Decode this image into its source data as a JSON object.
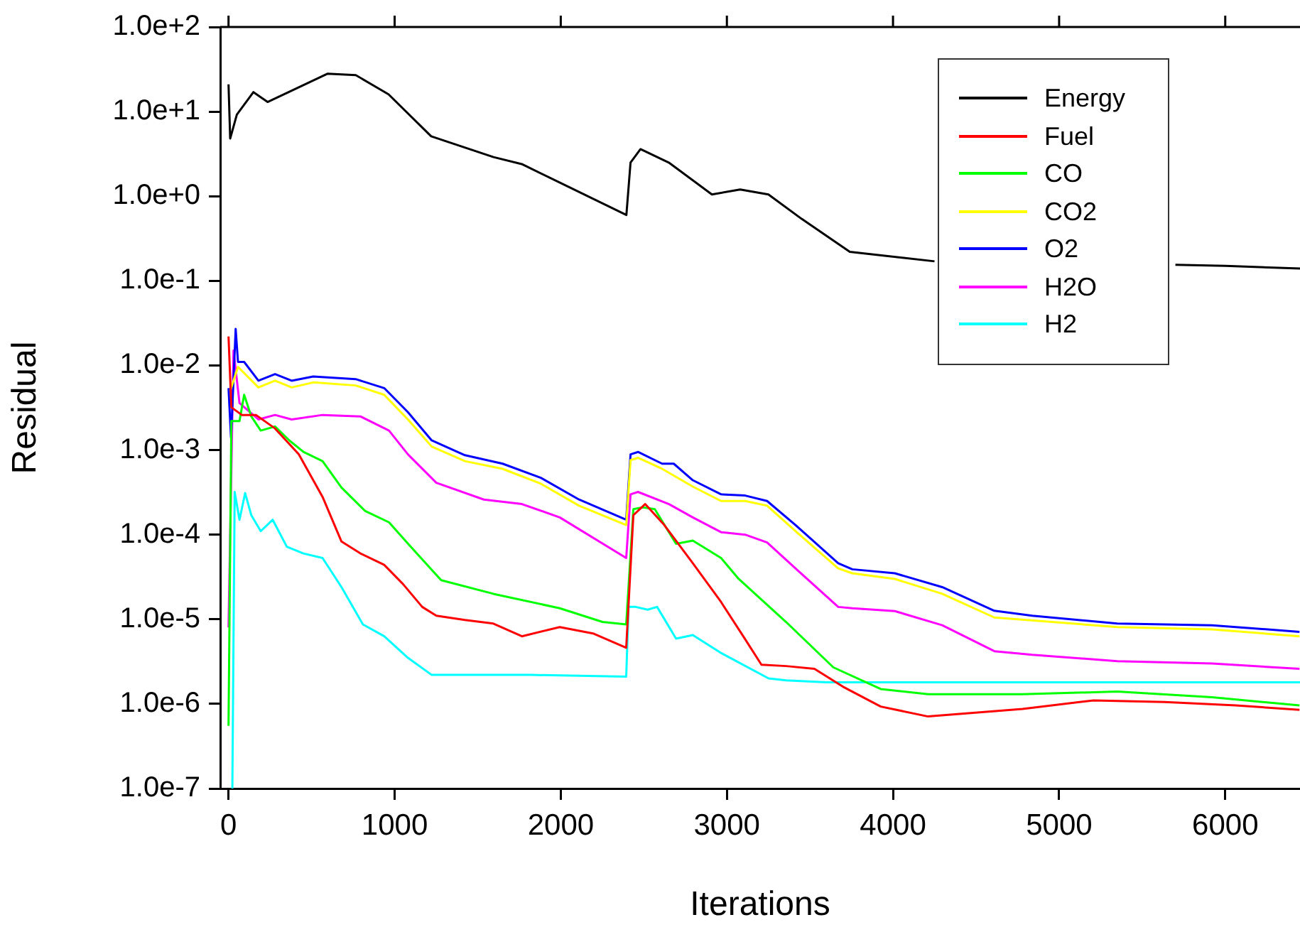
{
  "chart_data": {
    "type": "line",
    "xlabel": "Iterations",
    "ylabel": "Residual",
    "log": "y",
    "legend": "top right",
    "grid": false,
    "xlim": [
      -50,
      6450
    ],
    "xticks": [
      0,
      1000,
      2000,
      3000,
      4000,
      5000,
      6000
    ],
    "ylim": [
      1e-07,
      100
    ],
    "yticks": [
      {
        "value": 1e-07,
        "label": "1.0e-7"
      },
      {
        "value": 1e-06,
        "label": "1.0e-6"
      },
      {
        "value": 1e-05,
        "label": "1.0e-5"
      },
      {
        "value": 0.0001,
        "label": "1.0e-4"
      },
      {
        "value": 0.001,
        "label": "1.0e-3"
      },
      {
        "value": 0.01,
        "label": "1.0e-2"
      },
      {
        "value": 0.1,
        "label": "1.0e-1"
      },
      {
        "value": 1,
        "label": "1.0e+0"
      },
      {
        "value": 10,
        "label": "1.0e+1"
      },
      {
        "value": 100,
        "label": "1.0e+2"
      }
    ],
    "series": [
      {
        "name": "Energy",
        "color": "#000000",
        "x": [
          0,
          10,
          50,
          150,
          235,
          362,
          595,
          766,
          963,
          1220,
          1595,
          1765,
          2395,
          2420,
          2480,
          2650,
          2910,
          3080,
          3250,
          3450,
          3740,
          4250,
          5000,
          5700,
          6000,
          6450
        ],
        "values": [
          21,
          4.8,
          9.2,
          17,
          13,
          17,
          28,
          27,
          16,
          5.1,
          2.9,
          2.4,
          0.6,
          2.5,
          3.6,
          2.5,
          1.05,
          1.2,
          1.05,
          0.54,
          0.22,
          0.17,
          null,
          0.155,
          0.15,
          0.14
        ]
      },
      {
        "name": "Fuel",
        "color": "#ff0000",
        "x": [
          0,
          17,
          80,
          165,
          280,
          423,
          566,
          680,
          794,
          937,
          1051,
          1166,
          1251,
          1423,
          1594,
          1766,
          1994,
          2194,
          2394,
          2437,
          2508,
          2623,
          2795,
          2965,
          3108,
          3208,
          3356,
          3527,
          3698,
          3926,
          4211,
          4780,
          5208,
          5636,
          6064,
          6447
        ],
        "values": [
          0.022,
          0.0032,
          0.0026,
          0.0026,
          0.0018,
          0.00089,
          0.00028,
          8.3e-05,
          6e-05,
          4.4e-05,
          2.6e-05,
          1.4e-05,
          1.1e-05,
          9.8e-06,
          8.9e-06,
          6.3e-06,
          8.1e-06,
          6.8e-06,
          4.6e-06,
          0.00017,
          0.00023,
          0.00013,
          4.6e-05,
          1.6e-05,
          5.9e-06,
          2.9e-06,
          2.8e-06,
          2.6e-06,
          1.6e-06,
          9.3e-07,
          7.1e-07,
          8.7e-07,
          1.1e-06,
          1.05e-06,
          9.6e-07,
          8.5e-07
        ]
      },
      {
        "name": "CO",
        "color": "#00ff00",
        "x": [
          0,
          17,
          66,
          94,
          137,
          194,
          280,
          366,
          451,
          566,
          680,
          823,
          966,
          1108,
          1280,
          1594,
          1994,
          2251,
          2394,
          2437,
          2494,
          2566,
          2694,
          2795,
          2965,
          3071,
          3356,
          3641,
          3926,
          4211,
          4780,
          5350,
          5920,
          6447
        ],
        "values": [
          5.5e-07,
          0.0022,
          0.0022,
          0.0045,
          0.0025,
          0.0017,
          0.0019,
          0.0013,
          0.00095,
          0.00074,
          0.00036,
          0.00019,
          0.00014,
          6.8e-05,
          2.9e-05,
          2e-05,
          1.35e-05,
          9.3e-06,
          8.7e-06,
          0.0002,
          0.00021,
          0.0002,
          7.8e-05,
          8.5e-05,
          5.3e-05,
          3e-05,
          9.3e-06,
          2.7e-06,
          1.5e-06,
          1.3e-06,
          1.3e-06,
          1.4e-06,
          1.2e-06,
          9.6e-07
        ]
      },
      {
        "name": "CO2",
        "color": "#ffff00",
        "x": [
          10,
          57,
          180,
          280,
          380,
          510,
          765,
          937,
          1080,
          1223,
          1423,
          1650,
          1880,
          2110,
          2394,
          2420,
          2465,
          2610,
          2795,
          2965,
          3110,
          3242,
          3413,
          3670,
          3755,
          4011,
          4296,
          4610,
          5350,
          5920,
          6447
        ],
        "values": [
          0.005,
          0.0096,
          0.0055,
          0.0066,
          0.0055,
          0.0063,
          0.0058,
          0.0045,
          0.0023,
          0.0011,
          0.00074,
          0.0006,
          0.0004,
          0.00022,
          0.00013,
          0.00076,
          0.00081,
          0.0006,
          0.00037,
          0.00025,
          0.00025,
          0.00022,
          0.00011,
          4e-05,
          3.5e-05,
          3e-05,
          2e-05,
          1.05e-05,
          8.1e-06,
          7.6e-06,
          6.3e-06
        ]
      },
      {
        "name": "O2",
        "color": "#0000ff",
        "x": [
          0,
          15,
          43,
          57,
          94,
          180,
          280,
          380,
          510,
          765,
          937,
          1080,
          1223,
          1423,
          1650,
          1880,
          2110,
          2394,
          2420,
          2465,
          2610,
          2680,
          2795,
          2965,
          3110,
          3242,
          3413,
          3670,
          3755,
          4011,
          4296,
          4610,
          4838,
          5350,
          5920,
          6447
        ],
        "values": [
          0.0054,
          0.0014,
          0.027,
          0.011,
          0.011,
          0.0066,
          0.0079,
          0.0066,
          0.0074,
          0.0069,
          0.0054,
          0.0028,
          0.0013,
          0.00087,
          0.00069,
          0.00047,
          0.00026,
          0.00015,
          0.00089,
          0.00095,
          0.00069,
          0.00069,
          0.00044,
          0.0003,
          0.00029,
          0.00025,
          0.00013,
          4.6e-05,
          3.9e-05,
          3.5e-05,
          2.4e-05,
          1.26e-05,
          1.1e-05,
          8.9e-06,
          8.5e-06,
          7.1e-06
        ]
      },
      {
        "name": "H2O",
        "color": "#ff00ff",
        "x": [
          0,
          30,
          66,
          180,
          280,
          380,
          566,
          794,
          966,
          1080,
          1251,
          1537,
          1766,
          1994,
          2394,
          2420,
          2465,
          2651,
          2795,
          2965,
          3110,
          3242,
          3413,
          3670,
          3755,
          4011,
          4296,
          4610,
          4838,
          5350,
          5920,
          6447
        ],
        "values": [
          8e-06,
          0.015,
          0.0036,
          0.0023,
          0.0026,
          0.0023,
          0.0026,
          0.0025,
          0.0017,
          0.00089,
          0.00041,
          0.00026,
          0.00023,
          0.00016,
          5.3e-05,
          0.0003,
          0.00032,
          0.00023,
          0.00016,
          0.000107,
          0.0001,
          8.1e-05,
          4e-05,
          1.4e-05,
          1.35e-05,
          1.25e-05,
          8.5e-06,
          4.2e-06,
          3.8e-06,
          3.2e-06,
          3e-06,
          2.6e-06
        ]
      },
      {
        "name": "H2",
        "color": "#00ffff",
        "x": [
          23,
          37,
          66,
          100,
          137,
          194,
          266,
          351,
          451,
          566,
          680,
          809,
          937,
          1080,
          1223,
          1823,
          2394,
          2408,
          2451,
          2523,
          2580,
          2694,
          2795,
          2965,
          3251,
          3356,
          3600,
          6450
        ],
        "values": [
          1e-07,
          0.00032,
          0.00015,
          0.00031,
          0.00017,
          0.00011,
          0.00015,
          7.2e-05,
          6e-05,
          5.3e-05,
          2.4e-05,
          8.7e-06,
          6.3e-06,
          3.5e-06,
          2.2e-06,
          2.2e-06,
          2.1e-06,
          1.4e-05,
          1.4e-05,
          1.3e-05,
          1.4e-05,
          5.9e-06,
          6.5e-06,
          4e-06,
          2e-06,
          1.9e-06,
          1.8e-06,
          1.8e-06
        ]
      }
    ]
  }
}
